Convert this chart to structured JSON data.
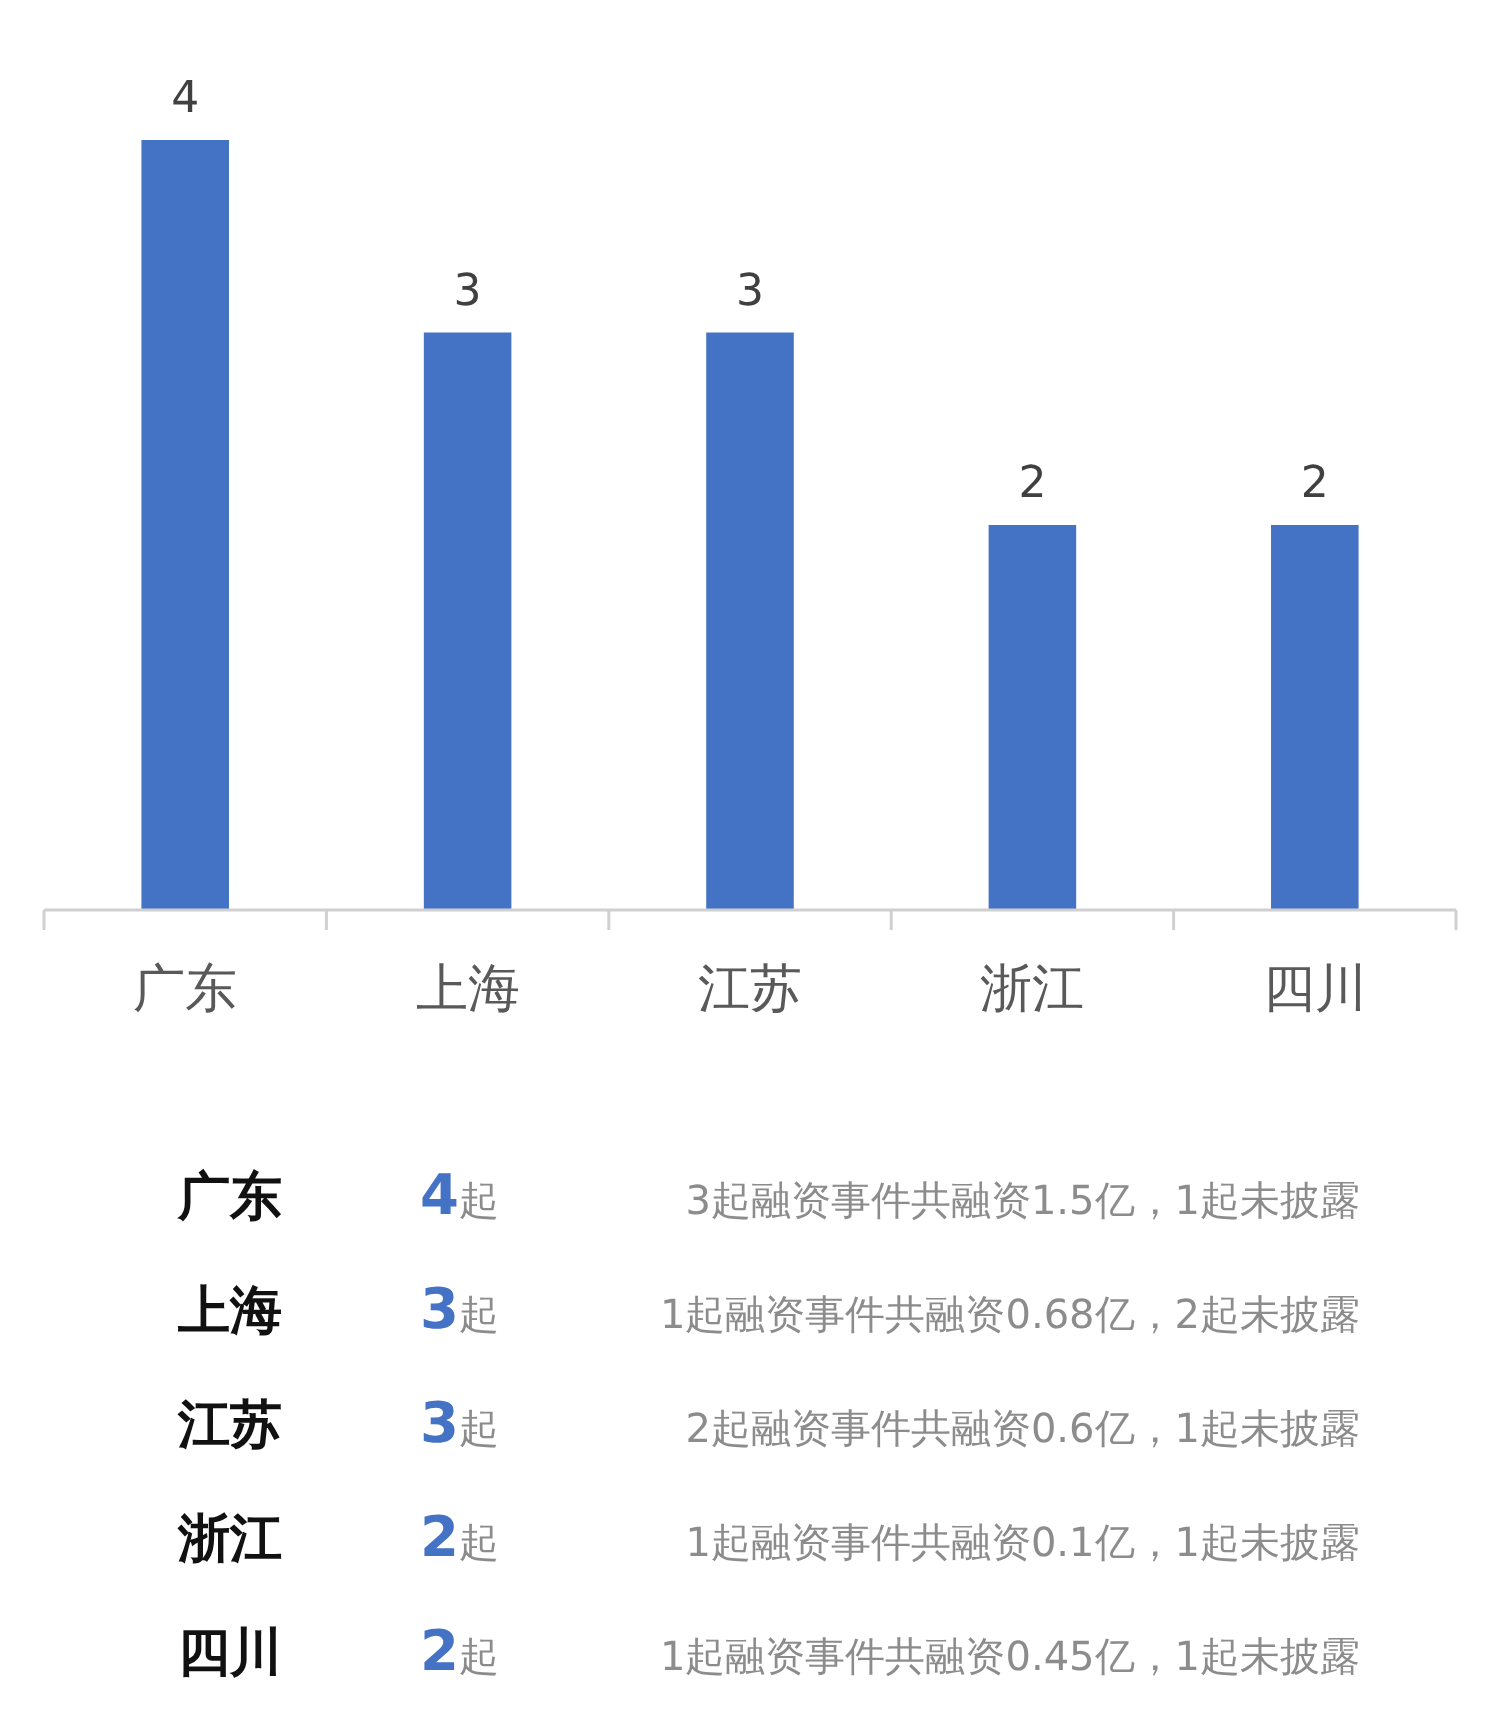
{
  "chart_data": {
    "type": "bar",
    "categories": [
      "广东",
      "上海",
      "江苏",
      "浙江",
      "四川"
    ],
    "values": [
      4,
      3,
      3,
      2,
      2
    ],
    "color": "#4472c4",
    "data_labels": true,
    "annotations": [
      "广东",
      "4起",
      "3起融资事件共融资1.5亿，1起未披露",
      "上海",
      "3起",
      "1起融资事件共融资0.68亿，2起未披露",
      "江苏",
      "3起",
      "2起融资事件共融资0.6亿，1起未披露",
      "浙江",
      "2起",
      "1起融资事件共融资0.1亿，1起未披露",
      "四川",
      "2起",
      "1起融资事件共融资0.45亿，1起未披露"
    ]
  }
}
